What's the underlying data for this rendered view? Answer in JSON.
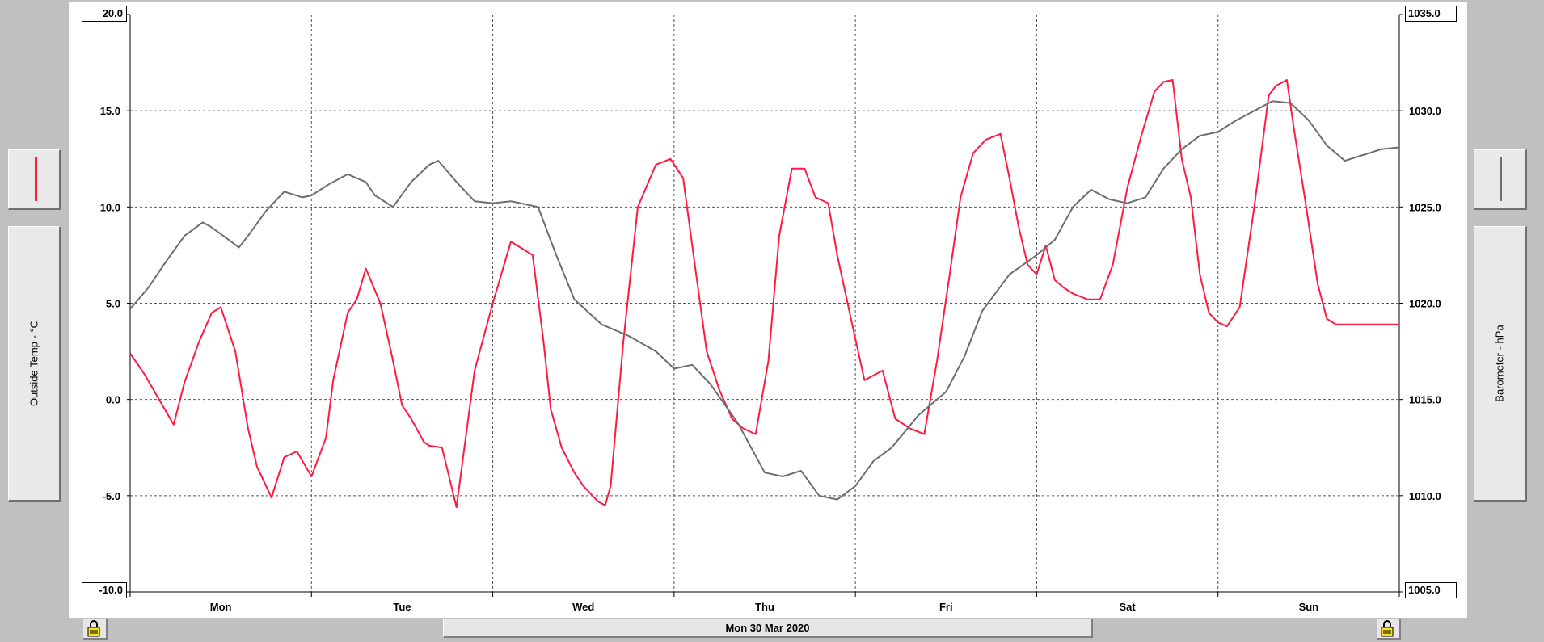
{
  "axis_left_label": "Outside Temp - °C",
  "axis_right_label": "Barometer - hPa",
  "date_label": "Mon 30 Mar 2020",
  "colors": {
    "temperature": "#ff1a40",
    "barometer": "#6e6e6e",
    "background": "#c0c0c0",
    "plot": "#ffffff"
  },
  "chart_data": {
    "type": "line",
    "title": "",
    "x_unit": "days",
    "xlim": [
      0,
      7
    ],
    "categories": [
      "Mon",
      "Tue",
      "Wed",
      "Thu",
      "Fri",
      "Sat",
      "Sun"
    ],
    "y_left": {
      "label": "Outside Temp - °C",
      "ylim": [
        -10,
        20
      ],
      "ticks": [
        "20.0",
        "15.0",
        "10.0",
        "5.0",
        "0.0",
        "-5.0",
        "-10.0"
      ]
    },
    "y_right": {
      "label": "Barometer - hPa",
      "ylim": [
        1005,
        1035
      ],
      "ticks": [
        "1035.0",
        "1030.0",
        "1025.0",
        "1020.0",
        "1015.0",
        "1010.0",
        "1005.0"
      ]
    },
    "grid": true,
    "series": [
      {
        "name": "Outside Temp - °C",
        "axis": "left",
        "color": "#ff1a40",
        "x": [
          0.0,
          0.08,
          0.16,
          0.24,
          0.3,
          0.38,
          0.45,
          0.5,
          0.58,
          0.65,
          0.7,
          0.78,
          0.85,
          0.92,
          1.0,
          1.08,
          1.12,
          1.2,
          1.25,
          1.3,
          1.38,
          1.45,
          1.5,
          1.55,
          1.62,
          1.65,
          1.72,
          1.8,
          1.9,
          2.0,
          2.1,
          2.22,
          2.28,
          2.32,
          2.38,
          2.45,
          2.5,
          2.58,
          2.62,
          2.65,
          2.72,
          2.8,
          2.9,
          2.98,
          3.05,
          3.1,
          3.18,
          3.25,
          3.32,
          3.38,
          3.45,
          3.52,
          3.58,
          3.65,
          3.72,
          3.78,
          3.85,
          3.9,
          3.98,
          4.05,
          4.15,
          4.22,
          4.3,
          4.38,
          4.45,
          4.52,
          4.58,
          4.65,
          4.72,
          4.8,
          4.85,
          4.9,
          4.95,
          5.0,
          5.05,
          5.1,
          5.15,
          5.2,
          5.28,
          5.35,
          5.42,
          5.5,
          5.58,
          5.65,
          5.7,
          5.75,
          5.8,
          5.85,
          5.9,
          5.95,
          6.0,
          6.05,
          6.12,
          6.2,
          6.28,
          6.32,
          6.38,
          6.42,
          6.48,
          6.55,
          6.6,
          6.65,
          6.72,
          6.78,
          6.82,
          6.88,
          6.95,
          7.0
        ],
        "values": [
          2.4,
          1.3,
          0.0,
          -1.3,
          0.9,
          3.0,
          4.5,
          4.8,
          2.5,
          -1.5,
          -3.5,
          -5.1,
          -3.0,
          -2.7,
          -4.0,
          -2.0,
          1.0,
          4.5,
          5.2,
          6.8,
          5.0,
          2.0,
          -0.3,
          -1.0,
          -2.2,
          -2.4,
          -2.5,
          -5.6,
          1.5,
          5.0,
          8.2,
          7.5,
          3.0,
          -0.5,
          -2.5,
          -3.8,
          -4.5,
          -5.3,
          -5.5,
          -4.5,
          3.0,
          10.0,
          12.2,
          12.5,
          11.5,
          8.0,
          2.5,
          0.5,
          -1.0,
          -1.5,
          -1.8,
          2.0,
          8.5,
          12.0,
          12.0,
          10.5,
          10.2,
          7.5,
          4.0,
          1.0,
          1.5,
          -1.0,
          -1.5,
          -1.8,
          2.0,
          6.5,
          10.5,
          12.8,
          13.5,
          13.8,
          11.5,
          9.0,
          7.0,
          6.5,
          8.0,
          6.2,
          5.8,
          5.5,
          5.2,
          5.2,
          7.0,
          11.0,
          13.8,
          16.0,
          16.5,
          16.6,
          12.5,
          10.5,
          6.5,
          4.5,
          4.0,
          3.8,
          4.8,
          10.0,
          15.8,
          16.3,
          16.6,
          14.0,
          10.4,
          6.0,
          4.2,
          3.9,
          3.9,
          3.9,
          3.9,
          3.9,
          3.9,
          3.9
        ]
      },
      {
        "name": "Barometer - hPa",
        "axis": "right",
        "color": "#6e6e6e",
        "x": [
          0.0,
          0.1,
          0.2,
          0.3,
          0.4,
          0.44,
          0.5,
          0.6,
          0.65,
          0.75,
          0.85,
          0.95,
          1.0,
          1.1,
          1.2,
          1.3,
          1.35,
          1.45,
          1.55,
          1.65,
          1.7,
          1.8,
          1.9,
          2.0,
          2.1,
          2.25,
          2.35,
          2.45,
          2.6,
          2.75,
          2.9,
          3.0,
          3.1,
          3.2,
          3.35,
          3.5,
          3.6,
          3.7,
          3.8,
          3.9,
          4.0,
          4.1,
          4.2,
          4.35,
          4.5,
          4.6,
          4.7,
          4.85,
          5.0,
          5.1,
          5.2,
          5.3,
          5.4,
          5.5,
          5.6,
          5.7,
          5.8,
          5.9,
          6.0,
          6.1,
          6.2,
          6.3,
          6.4,
          6.5,
          6.6,
          6.7,
          6.8,
          6.9,
          7.0
        ],
        "values": [
          1019.7,
          1020.8,
          1022.2,
          1023.5,
          1024.2,
          1024.0,
          1023.6,
          1022.9,
          1023.5,
          1024.8,
          1025.8,
          1025.5,
          1025.6,
          1026.2,
          1026.7,
          1026.3,
          1025.6,
          1025.0,
          1026.3,
          1027.2,
          1027.4,
          1026.3,
          1025.3,
          1025.2,
          1025.3,
          1025.0,
          1022.5,
          1020.2,
          1018.9,
          1018.3,
          1017.5,
          1016.6,
          1016.8,
          1015.8,
          1013.8,
          1011.2,
          1011.0,
          1011.3,
          1010.0,
          1009.8,
          1010.5,
          1011.8,
          1012.5,
          1014.2,
          1015.4,
          1017.2,
          1019.6,
          1021.5,
          1022.5,
          1023.3,
          1025.0,
          1025.9,
          1025.4,
          1025.2,
          1025.5,
          1027.0,
          1028.0,
          1028.7,
          1028.9,
          1029.5,
          1030.0,
          1030.5,
          1030.4,
          1029.5,
          1028.2,
          1027.4,
          1027.7,
          1028.0,
          1028.1
        ]
      }
    ]
  }
}
